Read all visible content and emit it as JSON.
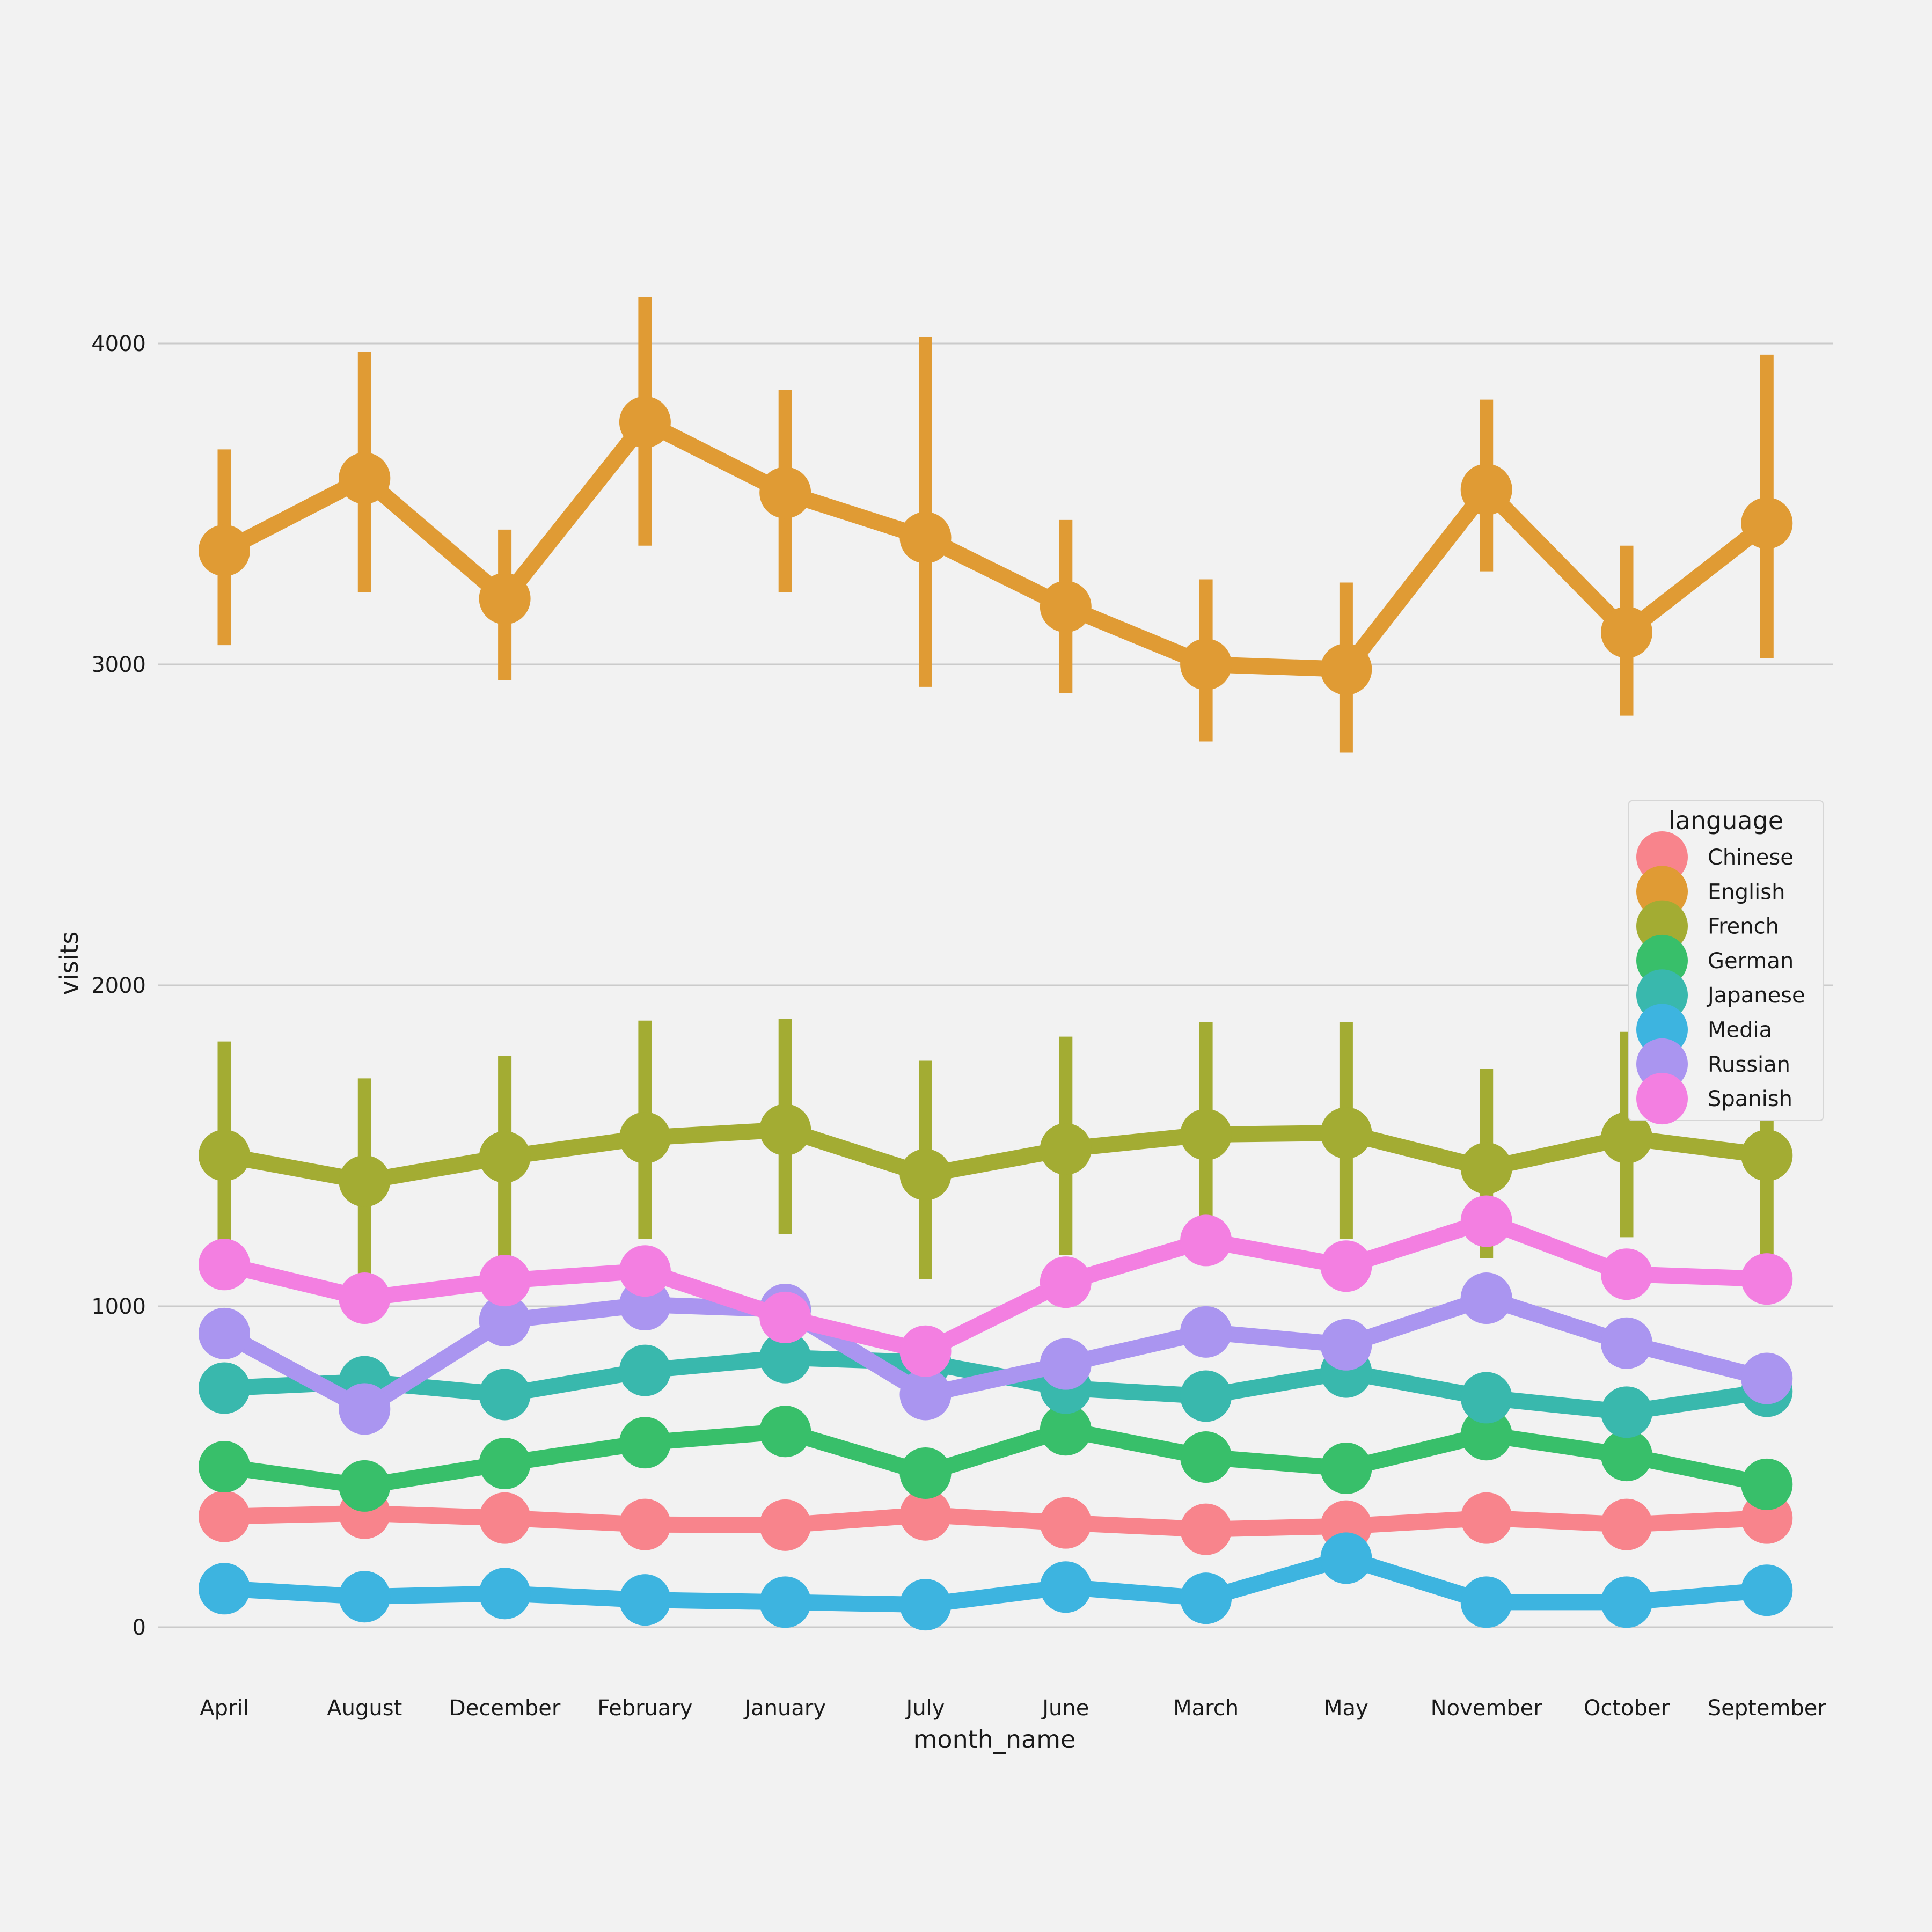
{
  "chart_data": {
    "type": "line",
    "xlabel": "month_name",
    "ylabel": "visits",
    "categories": [
      "April",
      "August",
      "December",
      "February",
      "January",
      "July",
      "June",
      "March",
      "May",
      "November",
      "October",
      "September"
    ],
    "ylim": [
      -200,
      4700
    ],
    "yticks": [
      0,
      1000,
      2000,
      3000,
      4000
    ],
    "grid": "horizontal",
    "legend": {
      "title": "language",
      "position": "center-right"
    },
    "series": [
      {
        "name": "Chinese",
        "color": "#f8848c",
        "values": [
          345,
          355,
          340,
          320,
          318,
          350,
          325,
          305,
          315,
          340,
          320,
          340
        ]
      },
      {
        "name": "English",
        "color": "#e09b34",
        "values": [
          3355,
          3580,
          3205,
          3755,
          3535,
          3395,
          3180,
          3000,
          2985,
          3545,
          3100,
          3440
        ],
        "err_low": [
          3060,
          3225,
          2950,
          3370,
          3225,
          2930,
          2910,
          2760,
          2725,
          3290,
          2840,
          3020
        ],
        "err_high": [
          3670,
          3975,
          3420,
          4145,
          3855,
          4020,
          3450,
          3265,
          3255,
          3825,
          3370,
          3965
        ]
      },
      {
        "name": "French",
        "color": "#a3ac33",
        "values": [
          1470,
          1390,
          1465,
          1525,
          1550,
          1410,
          1490,
          1535,
          1540,
          1430,
          1525,
          1470
        ],
        "err_low": [
          1150,
          1080,
          1150,
          1210,
          1225,
          1085,
          1160,
          1215,
          1210,
          1150,
          1215,
          1150
        ],
        "err_high": [
          1825,
          1710,
          1780,
          1890,
          1895,
          1765,
          1840,
          1885,
          1885,
          1740,
          1855,
          1810
        ]
      },
      {
        "name": "German",
        "color": "#38bf6a",
        "values": [
          500,
          440,
          510,
          575,
          610,
          480,
          615,
          530,
          495,
          600,
          535,
          445
        ]
      },
      {
        "name": "Japanese",
        "color": "#39b8ad",
        "values": [
          745,
          765,
          725,
          800,
          840,
          825,
          745,
          720,
          795,
          715,
          670,
          735
        ]
      },
      {
        "name": "Media",
        "color": "#3db4e0",
        "values": [
          120,
          95,
          105,
          85,
          78,
          70,
          125,
          90,
          215,
          78,
          78,
          115
        ]
      },
      {
        "name": "Russian",
        "color": "#aa95f0",
        "values": [
          915,
          680,
          955,
          1005,
          990,
          725,
          820,
          920,
          880,
          1025,
          885,
          775
        ]
      },
      {
        "name": "Spanish",
        "color": "#f37fe1",
        "values": [
          1130,
          1025,
          1080,
          1110,
          965,
          860,
          1075,
          1205,
          1125,
          1265,
          1100,
          1085
        ]
      }
    ]
  }
}
